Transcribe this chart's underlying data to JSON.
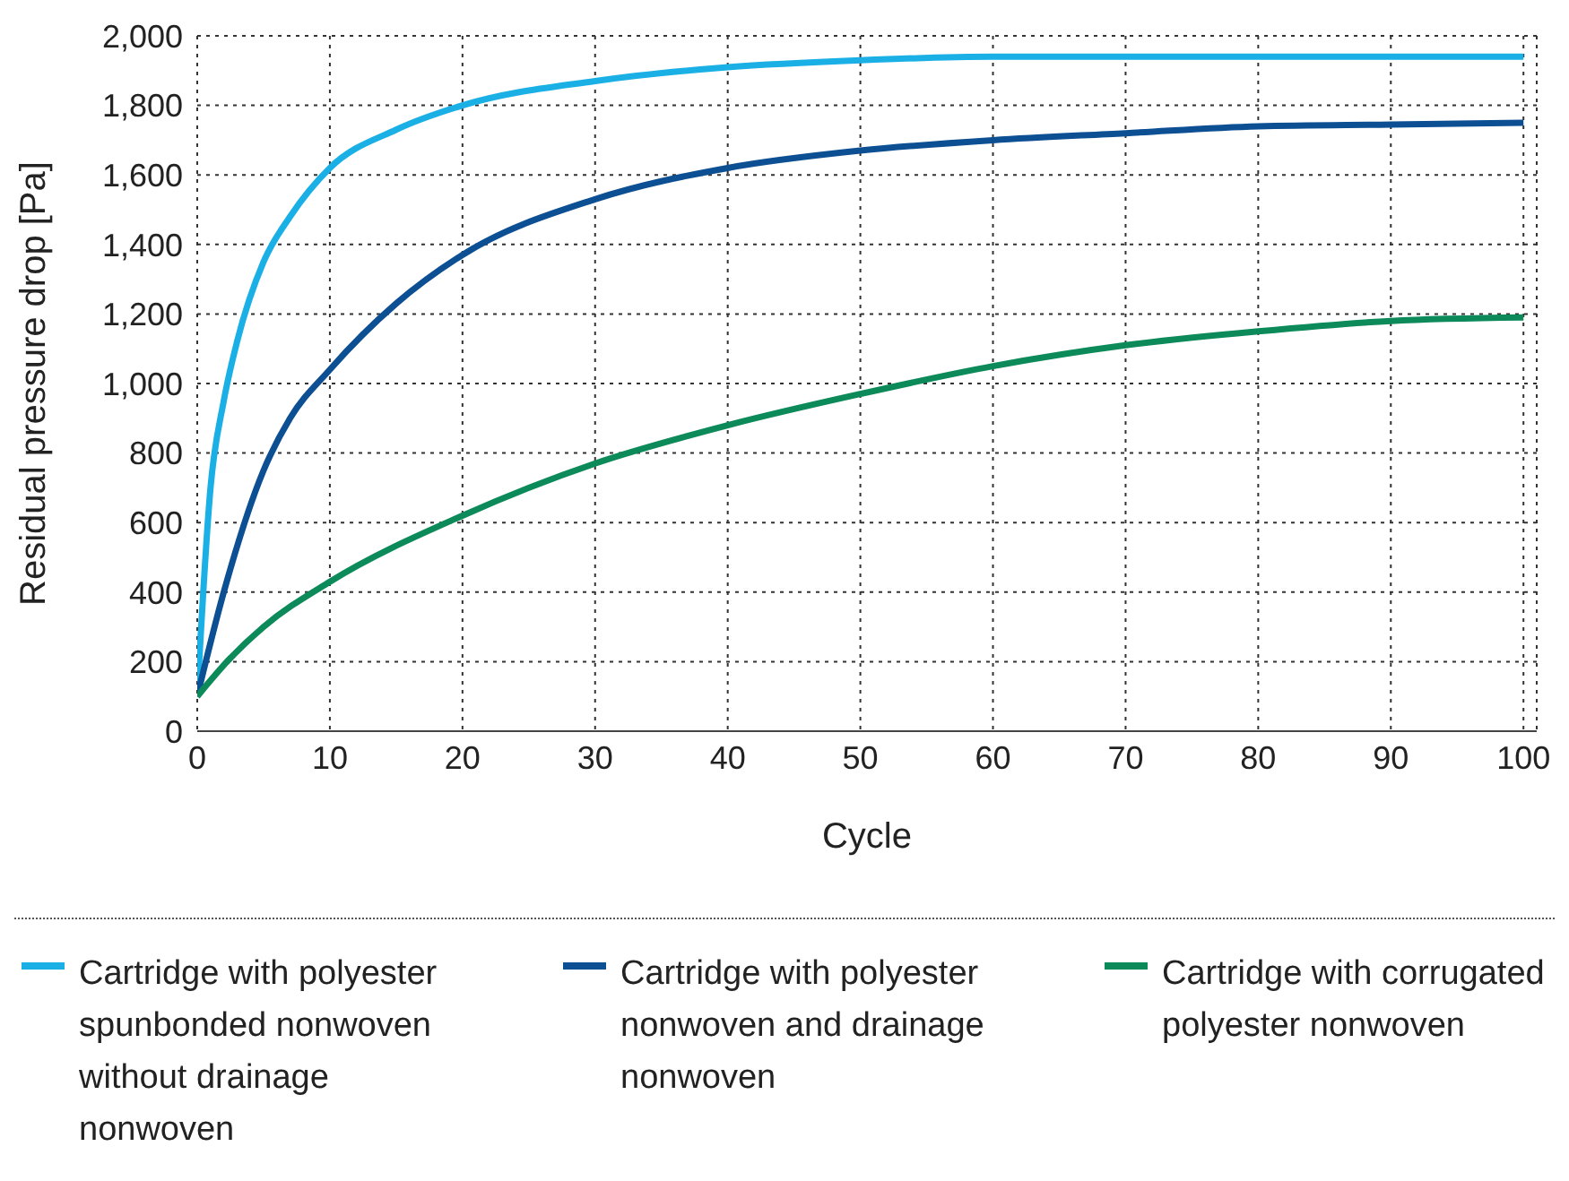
{
  "chart_data": {
    "type": "line",
    "xlabel": "Cycle",
    "ylabel": "Residual pressure drop [Pa]",
    "xlim": [
      0,
      101
    ],
    "xticks": [
      0,
      10,
      20,
      30,
      40,
      50,
      60,
      70,
      80,
      90,
      100
    ],
    "ylim": [
      0,
      2000
    ],
    "yticks": [
      {
        "value": 0,
        "label": "0"
      },
      {
        "value": 200,
        "label": "200"
      },
      {
        "value": 400,
        "label": "400"
      },
      {
        "value": 600,
        "label": "600"
      },
      {
        "value": 800,
        "label": "800"
      },
      {
        "value": 1000,
        "label": "1,000"
      },
      {
        "value": 1200,
        "label": "1,200"
      },
      {
        "value": 1400,
        "label": "1,400"
      },
      {
        "value": 1600,
        "label": "1,600"
      },
      {
        "value": 1800,
        "label": "1,800"
      },
      {
        "value": 2000,
        "label": "2,000"
      }
    ],
    "grid": true,
    "legend": "bottom",
    "marker": "none",
    "line_style": "solid",
    "series": [
      {
        "name": "Cartridge with polyester spunbonded nonwoven without drainage nonwoven",
        "color": "#1ab0e6",
        "x": [
          0,
          1,
          2,
          3,
          5,
          7,
          10,
          15,
          20,
          30,
          40,
          50,
          60,
          70,
          80,
          90,
          100
        ],
        "values": [
          100,
          700,
          950,
          1120,
          1350,
          1480,
          1620,
          1730,
          1800,
          1870,
          1910,
          1930,
          1940,
          1940,
          1940,
          1940,
          1940
        ]
      },
      {
        "name": "Cartridge with polyester nonwoven and drainage nonwoven",
        "color": "#0d4f93",
        "x": [
          0,
          2,
          5,
          7,
          10,
          15,
          20,
          30,
          40,
          50,
          60,
          70,
          80,
          90,
          100
        ],
        "values": [
          100,
          400,
          750,
          900,
          1040,
          1230,
          1370,
          1530,
          1620,
          1670,
          1700,
          1720,
          1740,
          1745,
          1750
        ]
      },
      {
        "name": "Cartridge with corrugated polyester nonwoven",
        "color": "#0d8a5a",
        "x": [
          0,
          2,
          5,
          10,
          20,
          30,
          40,
          50,
          60,
          70,
          80,
          90,
          100
        ],
        "values": [
          100,
          190,
          300,
          430,
          620,
          770,
          880,
          970,
          1050,
          1110,
          1150,
          1180,
          1190
        ]
      }
    ]
  }
}
